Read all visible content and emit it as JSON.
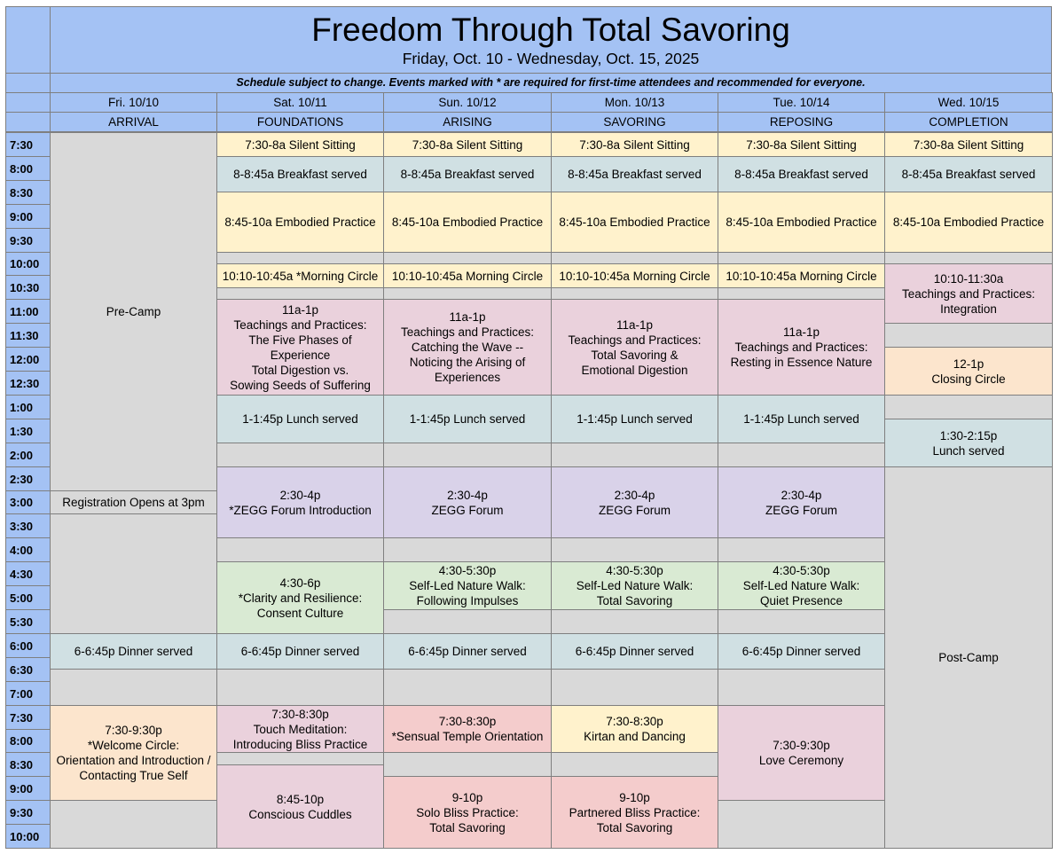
{
  "title": "Freedom Through Total Savoring",
  "subtitle": "Friday, Oct. 10 - Wednesday, Oct. 15, 2025",
  "note": "Schedule subject to change.  Events marked with * are required for first-time attendees and recommended for everyone.",
  "days": [
    {
      "date": "Fri. 10/10",
      "theme": "ARRIVAL"
    },
    {
      "date": "Sat. 10/11",
      "theme": "FOUNDATIONS"
    },
    {
      "date": "Sun. 10/12",
      "theme": "ARISING"
    },
    {
      "date": "Mon. 10/13",
      "theme": "SAVORING"
    },
    {
      "date": "Tue. 10/14",
      "theme": "REPOSING"
    },
    {
      "date": "Wed. 10/15",
      "theme": "COMPLETION"
    }
  ],
  "times": [
    "7:30",
    "8:00",
    "8:30",
    "9:00",
    "9:30",
    "10:00",
    "10:30",
    "11:00",
    "11:30",
    "12:00",
    "12:30",
    "1:00",
    "1:30",
    "2:00",
    "2:30",
    "3:00",
    "3:30",
    "4:00",
    "4:30",
    "5:00",
    "5:30",
    "6:00",
    "6:30",
    "7:00",
    "7:30",
    "8:00",
    "8:30",
    "9:00",
    "9:30",
    "10:00"
  ],
  "events": [
    {
      "day": 0,
      "start": 0,
      "end": 15,
      "color": "gray",
      "lines": [
        "Pre-Camp"
      ]
    },
    {
      "day": 0,
      "start": 15,
      "end": 16,
      "color": "gray",
      "lines": [
        "Registration Opens at 3pm"
      ]
    },
    {
      "day": 0,
      "start": 16,
      "end": 21,
      "color": "gray",
      "lines": []
    },
    {
      "day": 0,
      "start": 21,
      "end": 22.5,
      "color": "blue",
      "lines": [
        "6-6:45p Dinner served"
      ]
    },
    {
      "day": 0,
      "start": 22.5,
      "end": 24,
      "color": "gray",
      "lines": []
    },
    {
      "day": 0,
      "start": 24,
      "end": 28,
      "color": "orange",
      "lines": [
        "7:30-9:30p",
        "*Welcome Circle:",
        "Orientation and Introduction /",
        "Contacting True Self"
      ]
    },
    {
      "day": 0,
      "start": 28,
      "end": 30,
      "color": "gray",
      "lines": []
    },
    {
      "day": 1,
      "start": 0,
      "end": 1,
      "color": "yellow",
      "lines": [
        "7:30-8a Silent Sitting"
      ]
    },
    {
      "day": 1,
      "start": 1,
      "end": 2.5,
      "color": "blue",
      "lines": [
        "8-8:45a Breakfast served"
      ]
    },
    {
      "day": 1,
      "start": 2.5,
      "end": 5,
      "color": "yellow",
      "lines": [
        "8:45-10a Embodied Practice"
      ]
    },
    {
      "day": 1,
      "start": 5,
      "end": 5.5,
      "color": "gray",
      "lines": []
    },
    {
      "day": 1,
      "start": 5.5,
      "end": 6.5,
      "color": "yellow",
      "lines": [
        "10:10-10:45a *Morning Circle"
      ]
    },
    {
      "day": 1,
      "start": 6.5,
      "end": 7,
      "color": "gray",
      "lines": []
    },
    {
      "day": 1,
      "start": 7,
      "end": 11,
      "color": "pink",
      "lines": [
        "11a-1p",
        "Teachings and Practices:",
        "The Five Phases of",
        "Experience",
        "Total Digestion vs.",
        "Sowing Seeds of Suffering"
      ]
    },
    {
      "day": 1,
      "start": 11,
      "end": 13,
      "color": "blue",
      "lines": [
        "1-1:45p Lunch served"
      ]
    },
    {
      "day": 1,
      "start": 13,
      "end": 14,
      "color": "gray",
      "lines": []
    },
    {
      "day": 1,
      "start": 14,
      "end": 17,
      "color": "purple",
      "lines": [
        "2:30-4p",
        "*ZEGG Forum Introduction"
      ]
    },
    {
      "day": 1,
      "start": 17,
      "end": 18,
      "color": "gray",
      "lines": []
    },
    {
      "day": 1,
      "start": 18,
      "end": 21,
      "color": "green",
      "lines": [
        "4:30-6p",
        "*Clarity and Resilience:",
        "Consent Culture"
      ]
    },
    {
      "day": 1,
      "start": 21,
      "end": 22.5,
      "color": "blue",
      "lines": [
        "6-6:45p Dinner served"
      ]
    },
    {
      "day": 1,
      "start": 22.5,
      "end": 24,
      "color": "gray",
      "lines": []
    },
    {
      "day": 1,
      "start": 24,
      "end": 26,
      "color": "pink",
      "lines": [
        "7:30-8:30p",
        "Touch Meditation:",
        "Introducing Bliss Practice"
      ]
    },
    {
      "day": 1,
      "start": 26,
      "end": 26.5,
      "color": "gray",
      "lines": []
    },
    {
      "day": 1,
      "start": 26.5,
      "end": 30,
      "color": "pink",
      "lines": [
        "8:45-10p",
        "Conscious Cuddles"
      ]
    },
    {
      "day": 2,
      "start": 0,
      "end": 1,
      "color": "yellow",
      "lines": [
        "7:30-8a Silent Sitting"
      ]
    },
    {
      "day": 2,
      "start": 1,
      "end": 2.5,
      "color": "blue",
      "lines": [
        "8-8:45a Breakfast served"
      ]
    },
    {
      "day": 2,
      "start": 2.5,
      "end": 5,
      "color": "yellow",
      "lines": [
        "8:45-10a Embodied Practice"
      ]
    },
    {
      "day": 2,
      "start": 5,
      "end": 5.5,
      "color": "gray",
      "lines": []
    },
    {
      "day": 2,
      "start": 5.5,
      "end": 6.5,
      "color": "yellow",
      "lines": [
        "10:10-10:45a Morning Circle"
      ]
    },
    {
      "day": 2,
      "start": 6.5,
      "end": 7,
      "color": "gray",
      "lines": []
    },
    {
      "day": 2,
      "start": 7,
      "end": 11,
      "color": "pink",
      "lines": [
        "11a-1p",
        "Teachings and Practices:",
        "Catching the Wave --",
        "Noticing the Arising of",
        "Experiences"
      ]
    },
    {
      "day": 2,
      "start": 11,
      "end": 13,
      "color": "blue",
      "lines": [
        "1-1:45p Lunch served"
      ]
    },
    {
      "day": 2,
      "start": 13,
      "end": 14,
      "color": "gray",
      "lines": []
    },
    {
      "day": 2,
      "start": 14,
      "end": 17,
      "color": "purple",
      "lines": [
        "2:30-4p",
        "ZEGG Forum"
      ]
    },
    {
      "day": 2,
      "start": 17,
      "end": 18,
      "color": "gray",
      "lines": []
    },
    {
      "day": 2,
      "start": 18,
      "end": 20,
      "color": "green",
      "lines": [
        "4:30-5:30p",
        "Self-Led Nature Walk:",
        "Following Impulses"
      ]
    },
    {
      "day": 2,
      "start": 20,
      "end": 21,
      "color": "gray",
      "lines": []
    },
    {
      "day": 2,
      "start": 21,
      "end": 22.5,
      "color": "blue",
      "lines": [
        "6-6:45p Dinner served"
      ]
    },
    {
      "day": 2,
      "start": 22.5,
      "end": 24,
      "color": "gray",
      "lines": []
    },
    {
      "day": 2,
      "start": 24,
      "end": 26,
      "color": "red",
      "lines": [
        "7:30-8:30p",
        "*Sensual Temple Orientation"
      ]
    },
    {
      "day": 2,
      "start": 26,
      "end": 27,
      "color": "gray",
      "lines": []
    },
    {
      "day": 2,
      "start": 27,
      "end": 30,
      "color": "red",
      "lines": [
        "9-10p",
        "Solo Bliss Practice:",
        "Total Savoring"
      ]
    },
    {
      "day": 3,
      "start": 0,
      "end": 1,
      "color": "yellow",
      "lines": [
        "7:30-8a Silent Sitting"
      ]
    },
    {
      "day": 3,
      "start": 1,
      "end": 2.5,
      "color": "blue",
      "lines": [
        "8-8:45a Breakfast served"
      ]
    },
    {
      "day": 3,
      "start": 2.5,
      "end": 5,
      "color": "yellow",
      "lines": [
        "8:45-10a Embodied Practice"
      ]
    },
    {
      "day": 3,
      "start": 5,
      "end": 5.5,
      "color": "gray",
      "lines": []
    },
    {
      "day": 3,
      "start": 5.5,
      "end": 6.5,
      "color": "yellow",
      "lines": [
        "10:10-10:45a Morning Circle"
      ]
    },
    {
      "day": 3,
      "start": 6.5,
      "end": 7,
      "color": "gray",
      "lines": []
    },
    {
      "day": 3,
      "start": 7,
      "end": 11,
      "color": "pink",
      "lines": [
        "11a-1p",
        "Teachings and Practices:",
        "Total Savoring &",
        "Emotional Digestion"
      ]
    },
    {
      "day": 3,
      "start": 11,
      "end": 13,
      "color": "blue",
      "lines": [
        "1-1:45p Lunch served"
      ]
    },
    {
      "day": 3,
      "start": 13,
      "end": 14,
      "color": "gray",
      "lines": []
    },
    {
      "day": 3,
      "start": 14,
      "end": 17,
      "color": "purple",
      "lines": [
        "2:30-4p",
        "ZEGG Forum"
      ]
    },
    {
      "day": 3,
      "start": 17,
      "end": 18,
      "color": "gray",
      "lines": []
    },
    {
      "day": 3,
      "start": 18,
      "end": 20,
      "color": "green",
      "lines": [
        "4:30-5:30p",
        "Self-Led Nature Walk:",
        "Total Savoring"
      ]
    },
    {
      "day": 3,
      "start": 20,
      "end": 21,
      "color": "gray",
      "lines": []
    },
    {
      "day": 3,
      "start": 21,
      "end": 22.5,
      "color": "blue",
      "lines": [
        "6-6:45p Dinner served"
      ]
    },
    {
      "day": 3,
      "start": 22.5,
      "end": 24,
      "color": "gray",
      "lines": []
    },
    {
      "day": 3,
      "start": 24,
      "end": 26,
      "color": "yellow",
      "lines": [
        "7:30-8:30p",
        "Kirtan and Dancing"
      ]
    },
    {
      "day": 3,
      "start": 26,
      "end": 27,
      "color": "gray",
      "lines": []
    },
    {
      "day": 3,
      "start": 27,
      "end": 30,
      "color": "red",
      "lines": [
        "9-10p",
        "Partnered Bliss Practice:",
        "Total Savoring"
      ]
    },
    {
      "day": 4,
      "start": 0,
      "end": 1,
      "color": "yellow",
      "lines": [
        "7:30-8a Silent Sitting"
      ]
    },
    {
      "day": 4,
      "start": 1,
      "end": 2.5,
      "color": "blue",
      "lines": [
        "8-8:45a Breakfast served"
      ]
    },
    {
      "day": 4,
      "start": 2.5,
      "end": 5,
      "color": "yellow",
      "lines": [
        "8:45-10a Embodied Practice"
      ]
    },
    {
      "day": 4,
      "start": 5,
      "end": 5.5,
      "color": "gray",
      "lines": []
    },
    {
      "day": 4,
      "start": 5.5,
      "end": 6.5,
      "color": "yellow",
      "lines": [
        "10:10-10:45a Morning Circle"
      ]
    },
    {
      "day": 4,
      "start": 6.5,
      "end": 7,
      "color": "gray",
      "lines": []
    },
    {
      "day": 4,
      "start": 7,
      "end": 11,
      "color": "pink",
      "lines": [
        "11a-1p",
        "Teachings and Practices:",
        "Resting in Essence Nature"
      ]
    },
    {
      "day": 4,
      "start": 11,
      "end": 13,
      "color": "blue",
      "lines": [
        "1-1:45p Lunch served"
      ]
    },
    {
      "day": 4,
      "start": 13,
      "end": 14,
      "color": "gray",
      "lines": []
    },
    {
      "day": 4,
      "start": 14,
      "end": 17,
      "color": "purple",
      "lines": [
        "2:30-4p",
        "ZEGG Forum"
      ]
    },
    {
      "day": 4,
      "start": 17,
      "end": 18,
      "color": "gray",
      "lines": []
    },
    {
      "day": 4,
      "start": 18,
      "end": 20,
      "color": "green",
      "lines": [
        "4:30-5:30p",
        "Self-Led Nature Walk:",
        "Quiet Presence"
      ]
    },
    {
      "day": 4,
      "start": 20,
      "end": 21,
      "color": "gray",
      "lines": []
    },
    {
      "day": 4,
      "start": 21,
      "end": 22.5,
      "color": "blue",
      "lines": [
        "6-6:45p Dinner served"
      ]
    },
    {
      "day": 4,
      "start": 22.5,
      "end": 24,
      "color": "gray",
      "lines": []
    },
    {
      "day": 4,
      "start": 24,
      "end": 28,
      "color": "pink",
      "lines": [
        "7:30-9:30p",
        "Love Ceremony"
      ]
    },
    {
      "day": 4,
      "start": 28,
      "end": 30,
      "color": "gray",
      "lines": []
    },
    {
      "day": 5,
      "start": 0,
      "end": 1,
      "color": "yellow",
      "lines": [
        "7:30-8a Silent Sitting"
      ]
    },
    {
      "day": 5,
      "start": 1,
      "end": 2.5,
      "color": "blue",
      "lines": [
        "8-8:45a Breakfast served"
      ]
    },
    {
      "day": 5,
      "start": 2.5,
      "end": 5,
      "color": "yellow",
      "lines": [
        "8:45-10a Embodied Practice"
      ]
    },
    {
      "day": 5,
      "start": 5,
      "end": 5.5,
      "color": "gray",
      "lines": []
    },
    {
      "day": 5,
      "start": 5.5,
      "end": 8,
      "color": "pink",
      "lines": [
        "10:10-11:30a",
        "Teachings and Practices:",
        "Integration"
      ]
    },
    {
      "day": 5,
      "start": 8,
      "end": 9,
      "color": "gray",
      "lines": []
    },
    {
      "day": 5,
      "start": 9,
      "end": 11,
      "color": "orange",
      "lines": [
        "12-1p",
        "Closing Circle"
      ]
    },
    {
      "day": 5,
      "start": 11,
      "end": 12,
      "color": "gray",
      "lines": []
    },
    {
      "day": 5,
      "start": 12,
      "end": 14,
      "color": "blue",
      "lines": [
        "1:30-2:15p",
        "Lunch served"
      ]
    },
    {
      "day": 5,
      "start": 14,
      "end": 30,
      "color": "gray",
      "lines": [
        "Post-Camp"
      ]
    }
  ]
}
